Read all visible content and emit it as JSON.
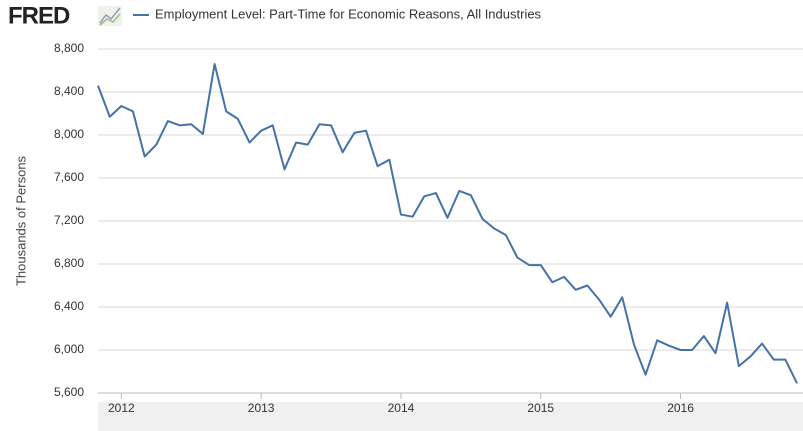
{
  "logo": "FRED",
  "chart_data": {
    "type": "line",
    "title": "Employment Level: Part-Time for Economic Reasons, All Industries",
    "y_label": "Thousands of Persons",
    "x": [
      2011.833,
      2011.917,
      2012,
      2012.083,
      2012.167,
      2012.25,
      2012.333,
      2012.417,
      2012.5,
      2012.583,
      2012.667,
      2012.75,
      2012.833,
      2012.917,
      2013,
      2013.083,
      2013.167,
      2013.25,
      2013.333,
      2013.417,
      2013.5,
      2013.583,
      2013.667,
      2013.75,
      2013.833,
      2013.917,
      2014,
      2014.083,
      2014.167,
      2014.25,
      2014.333,
      2014.417,
      2014.5,
      2014.583,
      2014.667,
      2014.75,
      2014.833,
      2014.917,
      2015,
      2015.083,
      2015.167,
      2015.25,
      2015.333,
      2015.417,
      2015.5,
      2015.583,
      2015.667,
      2015.75,
      2015.833,
      2015.917,
      2016,
      2016.083,
      2016.167,
      2016.25,
      2016.333,
      2016.417,
      2016.5,
      2016.583,
      2016.667,
      2016.75,
      2016.833
    ],
    "series": [
      {
        "name": "Employment Level: Part-Time for Economic Reasons, All Industries",
        "color": "#4572a7",
        "values": [
          8460,
          8170,
          8270,
          8220,
          7800,
          7910,
          8130,
          8090,
          8100,
          8010,
          8660,
          8220,
          8150,
          7930,
          8040,
          8090,
          7680,
          7930,
          7910,
          8100,
          8090,
          7840,
          8020,
          8040,
          7710,
          7770,
          7260,
          7240,
          7430,
          7460,
          7230,
          7480,
          7440,
          7220,
          7130,
          7070,
          6860,
          6790,
          6790,
          6630,
          6680,
          6560,
          6600,
          6470,
          6310,
          6490,
          6050,
          5770,
          6090,
          6040,
          6000,
          6000,
          6130,
          5970,
          6440,
          5850,
          5940,
          6060,
          5910,
          5910,
          5690
        ]
      }
    ],
    "xlim": [
      2011.833,
      2016.833
    ],
    "xticks": [
      2012,
      2013,
      2014,
      2015,
      2016
    ],
    "ylim": [
      5600,
      8800
    ],
    "yticks": [
      {
        "value": 5600,
        "label": "5,600"
      },
      {
        "value": 6000,
        "label": "6,000"
      },
      {
        "value": 6400,
        "label": "6,400"
      },
      {
        "value": 6800,
        "label": "6,800"
      },
      {
        "value": 7200,
        "label": "7,200"
      },
      {
        "value": 7600,
        "label": "7,600"
      },
      {
        "value": 8000,
        "label": "8,000"
      },
      {
        "value": 8400,
        "label": "8,400"
      },
      {
        "value": 8800,
        "label": "8,800"
      }
    ],
    "grid": true
  }
}
